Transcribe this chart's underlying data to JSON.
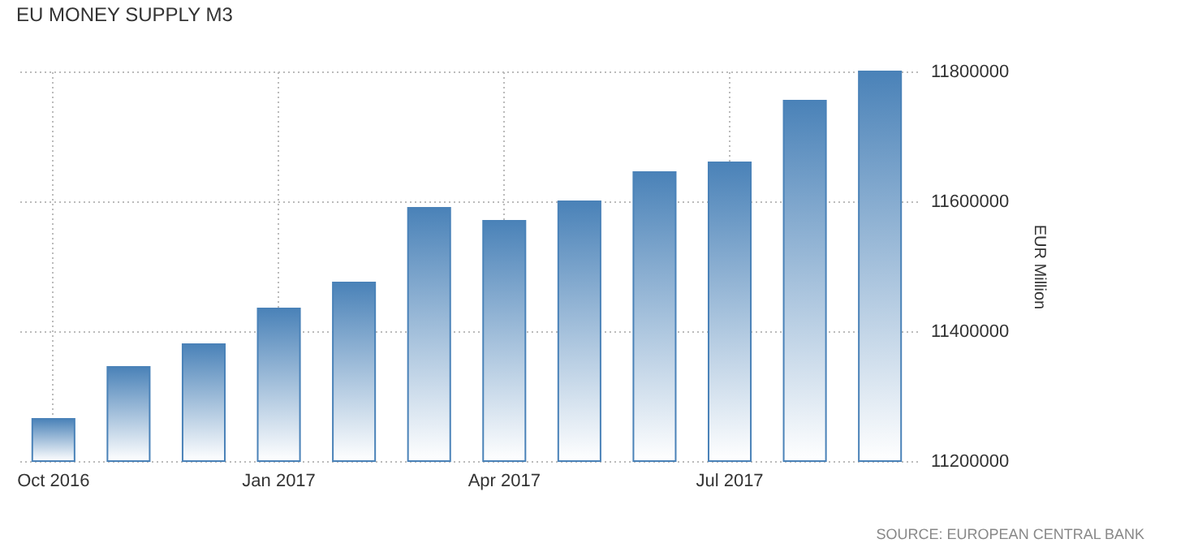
{
  "chart_data": {
    "type": "bar",
    "title": "EU MONEY SUPPLY M3",
    "ylabel": "EUR Million",
    "categories": [
      "Oct 2016",
      null,
      null,
      "Jan 2017",
      null,
      null,
      "Apr 2017",
      null,
      null,
      "Jul 2017",
      null,
      null
    ],
    "values": [
      11265000,
      11345000,
      11380000,
      11435000,
      11475000,
      11590000,
      11570000,
      11600000,
      11645000,
      11660000,
      11755000,
      11800000
    ],
    "color": "#4a82b8",
    "ylim": [
      11200000,
      11800000
    ],
    "yticks": [
      11200000,
      11400000,
      11600000,
      11800000
    ],
    "grid": true,
    "annotations": [
      "SOURCE: EUROPEAN CENTRAL BANK"
    ]
  }
}
